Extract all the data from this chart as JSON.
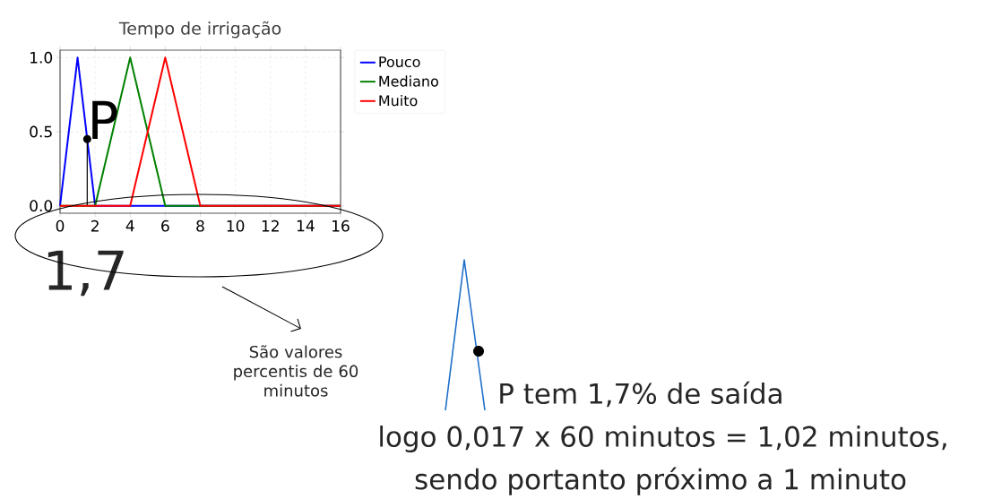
{
  "chart_data": {
    "type": "line",
    "title": "Tempo de irrigação",
    "xlim": [
      0,
      16
    ],
    "ylim": [
      -0.05,
      1.05
    ],
    "xticks": [
      0,
      2,
      4,
      6,
      8,
      10,
      12,
      14,
      16
    ],
    "yticks": [
      {
        "value": 0,
        "label": "0.0"
      },
      {
        "value": 0.5,
        "label": "0.5"
      },
      {
        "value": 1,
        "label": "1.0"
      }
    ],
    "grid": true,
    "legend": "right",
    "marker": "none",
    "line_style": "solid",
    "series": [
      {
        "name": "Pouco",
        "color": "#0000ff",
        "x": [
          0,
          1,
          2,
          16
        ],
        "values": [
          0,
          1,
          0,
          0
        ]
      },
      {
        "name": "Mediano",
        "color": "#008000",
        "x": [
          0,
          2,
          4,
          6,
          16
        ],
        "values": [
          0,
          0,
          1,
          0,
          0
        ]
      },
      {
        "name": "Muito",
        "color": "#ff0000",
        "x": [
          0,
          4,
          6,
          8,
          16
        ],
        "values": [
          0,
          0,
          1,
          0,
          0
        ]
      }
    ],
    "annotations": [
      {
        "text": "P",
        "x": 1.55,
        "y": 0.45
      },
      "1,7",
      "São valores percentis de 60 minutos",
      "P  tem 1,7% de saída",
      "logo 0,017 x 60 minutos = 1,02 minutos,",
      "sendo portanto próximo a 1 minuto"
    ]
  }
}
